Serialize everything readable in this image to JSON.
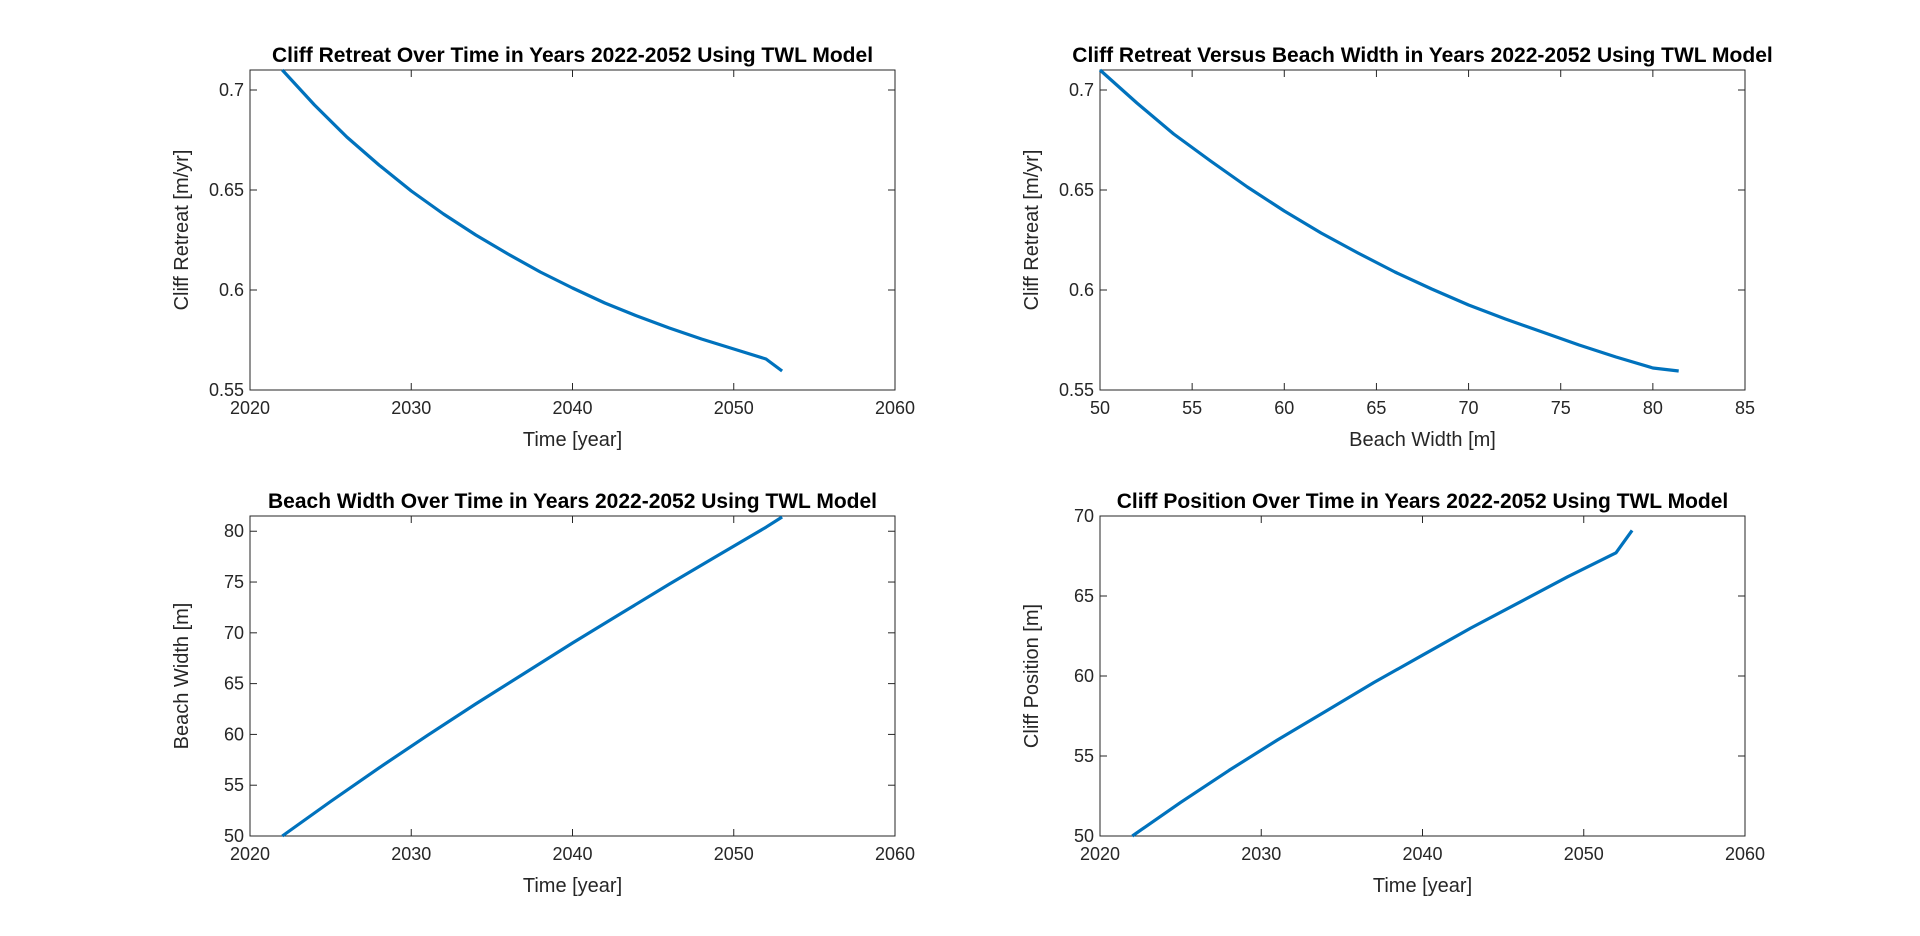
{
  "figure": {
    "background": "#ffffff",
    "line_color": "#0072bd"
  },
  "chart_data": [
    {
      "type": "line",
      "title": "Cliff Retreat Over Time in Years 2022-2052 Using TWL Model",
      "xlabel": "Time [year]",
      "ylabel": "Cliff Retreat [m/yr]",
      "xlim": [
        2020,
        2060
      ],
      "ylim": [
        0.55,
        0.71
      ],
      "xticks": [
        2020,
        2030,
        2040,
        2050,
        2060
      ],
      "yticks": [
        0.55,
        0.6,
        0.65,
        0.7
      ],
      "ytick_labels": [
        "0.55",
        "0.6",
        "0.65",
        "0.7"
      ],
      "grid": false,
      "series": [
        {
          "x": [
            2022,
            2024,
            2026,
            2028,
            2030,
            2032,
            2034,
            2036,
            2038,
            2040,
            2042,
            2044,
            2046,
            2048,
            2050,
            2052,
            2053
          ],
          "y": [
            0.71,
            0.6925,
            0.6765,
            0.6625,
            0.6495,
            0.638,
            0.6275,
            0.618,
            0.609,
            0.601,
            0.5935,
            0.587,
            0.581,
            0.5755,
            0.5705,
            0.5655,
            0.5595
          ]
        }
      ]
    },
    {
      "type": "line",
      "title": "Cliff Retreat Versus Beach Width in Years 2022-2052 Using TWL Model",
      "xlabel": "Beach Width [m]",
      "ylabel": "Cliff Retreat [m/yr]",
      "xlim": [
        50,
        85
      ],
      "ylim": [
        0.55,
        0.71
      ],
      "xticks": [
        50,
        55,
        60,
        65,
        70,
        75,
        80,
        85
      ],
      "yticks": [
        0.55,
        0.6,
        0.65,
        0.7
      ],
      "ytick_labels": [
        "0.55",
        "0.6",
        "0.65",
        "0.7"
      ],
      "grid": false,
      "series": [
        {
          "x": [
            50,
            52,
            54,
            56,
            58,
            60,
            62,
            64,
            66,
            68,
            70,
            72,
            74,
            76,
            78,
            80,
            81.4
          ],
          "y": [
            0.71,
            0.6935,
            0.678,
            0.6645,
            0.6515,
            0.6395,
            0.6285,
            0.6185,
            0.609,
            0.6005,
            0.5925,
            0.5855,
            0.579,
            0.5725,
            0.5665,
            0.561,
            0.5595
          ]
        }
      ]
    },
    {
      "type": "line",
      "title": "Beach Width Over Time in Years 2022-2052 Using TWL Model",
      "xlabel": "Time [year]",
      "ylabel": "Beach Width [m]",
      "xlim": [
        2020,
        2060
      ],
      "ylim": [
        50,
        81.5
      ],
      "xticks": [
        2020,
        2030,
        2040,
        2050,
        2060
      ],
      "yticks": [
        50,
        55,
        60,
        65,
        70,
        75,
        80
      ],
      "ytick_labels": [
        "50",
        "55",
        "60",
        "65",
        "70",
        "75",
        "80"
      ],
      "grid": false,
      "series": [
        {
          "x": [
            2022,
            2025,
            2028,
            2031,
            2034,
            2037,
            2040,
            2043,
            2046,
            2049,
            2052,
            2053
          ],
          "y": [
            50,
            53.4,
            56.7,
            59.9,
            63.0,
            66.0,
            69.0,
            71.9,
            74.8,
            77.6,
            80.4,
            81.4
          ]
        }
      ]
    },
    {
      "type": "line",
      "title": "Cliff Position Over Time in Years 2022-2052 Using TWL Model",
      "xlabel": "Time [year]",
      "ylabel": "Cliff Position [m]",
      "xlim": [
        2020,
        2060
      ],
      "ylim": [
        50,
        70
      ],
      "xticks": [
        2020,
        2030,
        2040,
        2050,
        2060
      ],
      "yticks": [
        50,
        55,
        60,
        65,
        70
      ],
      "ytick_labels": [
        "50",
        "55",
        "60",
        "65",
        "70"
      ],
      "grid": false,
      "series": [
        {
          "x": [
            2022,
            2025,
            2028,
            2031,
            2034,
            2037,
            2040,
            2043,
            2046,
            2049,
            2052,
            2053
          ],
          "y": [
            50,
            52.1,
            54.1,
            56.0,
            57.8,
            59.6,
            61.3,
            63.0,
            64.6,
            66.2,
            67.7,
            69.1
          ]
        }
      ]
    }
  ]
}
